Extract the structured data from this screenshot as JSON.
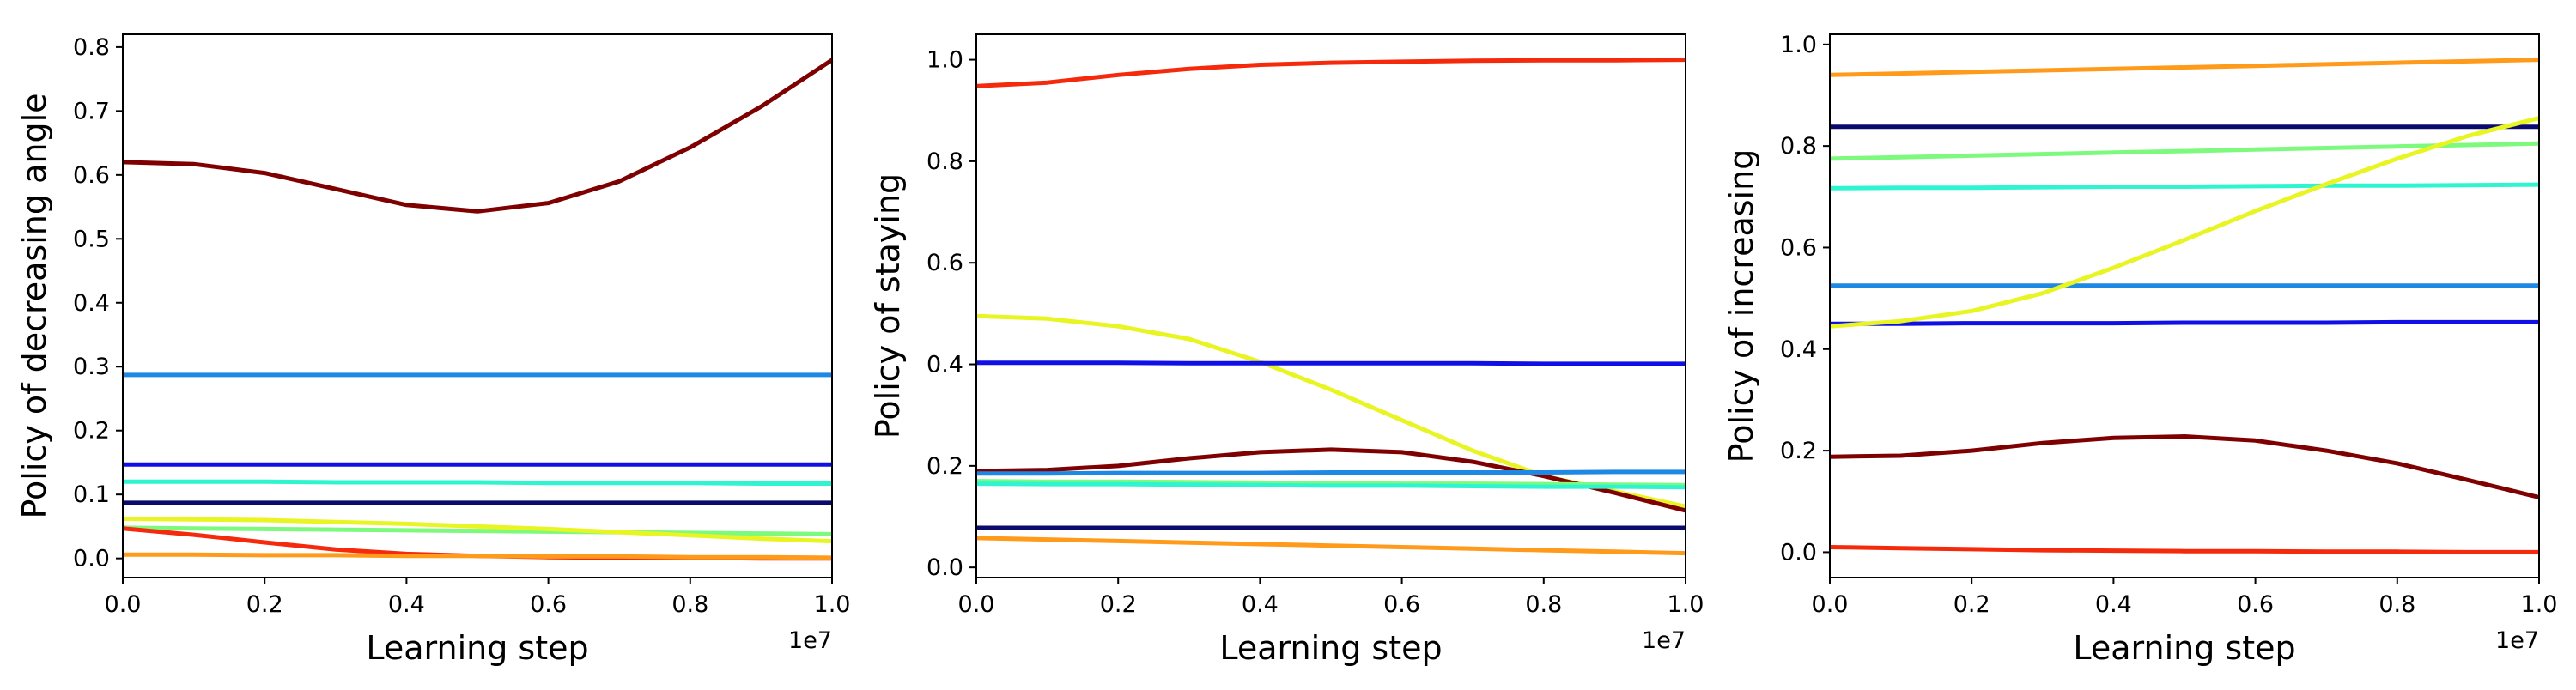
{
  "chart_data": [
    {
      "type": "line",
      "xlabel": "Learning step",
      "ylabel": "Policy of decreasing angle",
      "x_offset_label": "1e7",
      "xlim": [
        0,
        1.0
      ],
      "ylim": [
        -0.03,
        0.82
      ],
      "xticks": [
        0.0,
        0.2,
        0.4,
        0.6,
        0.8,
        1.0
      ],
      "xtick_labels": [
        "0.0",
        "0.2",
        "0.4",
        "0.6",
        "0.8",
        "1.0"
      ],
      "yticks": [
        0.0,
        0.1,
        0.2,
        0.3,
        0.4,
        0.5,
        0.6,
        0.7,
        0.8
      ],
      "ytick_labels": [
        "0.0",
        "0.1",
        "0.2",
        "0.3",
        "0.4",
        "0.5",
        "0.6",
        "0.7",
        "0.8"
      ],
      "grid": false,
      "x": [
        0.0,
        0.1,
        0.2,
        0.3,
        0.4,
        0.5,
        0.6,
        0.7,
        0.8,
        0.9,
        1.0
      ],
      "series": [
        {
          "color": "#7f0000",
          "values": [
            0.62,
            0.617,
            0.603,
            0.578,
            0.553,
            0.543,
            0.556,
            0.59,
            0.643,
            0.707,
            0.78
          ]
        },
        {
          "color": "#1e88e5",
          "values": [
            0.287,
            0.287,
            0.287,
            0.287,
            0.287,
            0.287,
            0.287,
            0.287,
            0.287,
            0.287,
            0.287
          ]
        },
        {
          "color": "#1010e6",
          "values": [
            0.147,
            0.147,
            0.147,
            0.147,
            0.147,
            0.147,
            0.147,
            0.147,
            0.147,
            0.147,
            0.147
          ]
        },
        {
          "color": "#2ef5d0",
          "values": [
            0.12,
            0.12,
            0.12,
            0.119,
            0.119,
            0.119,
            0.118,
            0.118,
            0.118,
            0.117,
            0.117
          ]
        },
        {
          "color": "#0b0b6e",
          "values": [
            0.087,
            0.087,
            0.087,
            0.087,
            0.087,
            0.087,
            0.087,
            0.087,
            0.087,
            0.087,
            0.087
          ]
        },
        {
          "color": "#7dfa7d",
          "values": [
            0.048,
            0.047,
            0.046,
            0.045,
            0.044,
            0.043,
            0.042,
            0.041,
            0.04,
            0.039,
            0.038
          ]
        },
        {
          "color": "#e8f523",
          "values": [
            0.062,
            0.061,
            0.06,
            0.057,
            0.054,
            0.05,
            0.046,
            0.041,
            0.036,
            0.031,
            0.027
          ]
        },
        {
          "color": "#f52a0c",
          "values": [
            0.047,
            0.037,
            0.025,
            0.014,
            0.007,
            0.004,
            0.002,
            0.001,
            0.001,
            0.0,
            0.0
          ]
        },
        {
          "color": "#ff9a1a",
          "values": [
            0.006,
            0.006,
            0.005,
            0.005,
            0.004,
            0.004,
            0.003,
            0.003,
            0.002,
            0.002,
            0.001
          ]
        }
      ]
    },
    {
      "type": "line",
      "xlabel": "Learning step",
      "ylabel": "Policy of staying",
      "x_offset_label": "1e7",
      "xlim": [
        0,
        1.0
      ],
      "ylim": [
        -0.02,
        1.05
      ],
      "xticks": [
        0.0,
        0.2,
        0.4,
        0.6,
        0.8,
        1.0
      ],
      "xtick_labels": [
        "0.0",
        "0.2",
        "0.4",
        "0.6",
        "0.8",
        "1.0"
      ],
      "yticks": [
        0.0,
        0.2,
        0.4,
        0.6,
        0.8,
        1.0
      ],
      "ytick_labels": [
        "0.0",
        "0.2",
        "0.4",
        "0.6",
        "0.8",
        "1.0"
      ],
      "grid": false,
      "x": [
        0.0,
        0.1,
        0.2,
        0.3,
        0.4,
        0.5,
        0.6,
        0.7,
        0.8,
        0.9,
        1.0
      ],
      "series": [
        {
          "color": "#f52a0c",
          "values": [
            0.948,
            0.955,
            0.97,
            0.982,
            0.99,
            0.994,
            0.996,
            0.998,
            0.999,
            0.999,
            1.0
          ]
        },
        {
          "color": "#e8f523",
          "values": [
            0.495,
            0.49,
            0.475,
            0.45,
            0.405,
            0.35,
            0.29,
            0.23,
            0.18,
            0.15,
            0.12
          ]
        },
        {
          "color": "#1010e6",
          "values": [
            0.403,
            0.403,
            0.403,
            0.402,
            0.402,
            0.402,
            0.402,
            0.402,
            0.401,
            0.401,
            0.401
          ]
        },
        {
          "color": "#7f0000",
          "values": [
            0.19,
            0.192,
            0.2,
            0.215,
            0.227,
            0.232,
            0.227,
            0.208,
            0.18,
            0.147,
            0.112
          ]
        },
        {
          "color": "#1e88e5",
          "values": [
            0.185,
            0.185,
            0.186,
            0.186,
            0.186,
            0.187,
            0.187,
            0.187,
            0.187,
            0.188,
            0.188
          ]
        },
        {
          "color": "#7dfa7d",
          "values": [
            0.17,
            0.169,
            0.169,
            0.168,
            0.167,
            0.166,
            0.165,
            0.165,
            0.164,
            0.163,
            0.162
          ]
        },
        {
          "color": "#2ef5d0",
          "values": [
            0.165,
            0.164,
            0.164,
            0.163,
            0.162,
            0.161,
            0.161,
            0.16,
            0.159,
            0.159,
            0.158
          ]
        },
        {
          "color": "#0b0b6e",
          "values": [
            0.078,
            0.078,
            0.078,
            0.078,
            0.078,
            0.078,
            0.078,
            0.078,
            0.078,
            0.078,
            0.078
          ]
        },
        {
          "color": "#ff9a1a",
          "values": [
            0.058,
            0.055,
            0.052,
            0.049,
            0.046,
            0.043,
            0.04,
            0.037,
            0.034,
            0.031,
            0.028
          ]
        }
      ]
    },
    {
      "type": "line",
      "xlabel": "Learning step",
      "ylabel": "Policy of increasing",
      "x_offset_label": "1e7",
      "xlim": [
        0,
        1.0
      ],
      "ylim": [
        -0.05,
        1.02
      ],
      "xticks": [
        0.0,
        0.2,
        0.4,
        0.6,
        0.8,
        1.0
      ],
      "xtick_labels": [
        "0.0",
        "0.2",
        "0.4",
        "0.6",
        "0.8",
        "1.0"
      ],
      "yticks": [
        0.0,
        0.2,
        0.4,
        0.6,
        0.8,
        1.0
      ],
      "ytick_labels": [
        "0.0",
        "0.2",
        "0.4",
        "0.6",
        "0.8",
        "1.0"
      ],
      "grid": false,
      "x": [
        0.0,
        0.1,
        0.2,
        0.3,
        0.4,
        0.5,
        0.6,
        0.7,
        0.8,
        0.9,
        1.0
      ],
      "series": [
        {
          "color": "#ff9a1a",
          "values": [
            0.94,
            0.943,
            0.946,
            0.949,
            0.952,
            0.955,
            0.958,
            0.961,
            0.964,
            0.967,
            0.97
          ]
        },
        {
          "color": "#0b0b6e",
          "values": [
            0.838,
            0.838,
            0.838,
            0.838,
            0.838,
            0.838,
            0.838,
            0.838,
            0.838,
            0.838,
            0.838
          ]
        },
        {
          "color": "#7dfa7d",
          "values": [
            0.775,
            0.778,
            0.781,
            0.784,
            0.787,
            0.79,
            0.793,
            0.796,
            0.799,
            0.802,
            0.805
          ]
        },
        {
          "color": "#2ef5d0",
          "values": [
            0.717,
            0.718,
            0.718,
            0.719,
            0.72,
            0.72,
            0.721,
            0.722,
            0.722,
            0.723,
            0.724
          ]
        },
        {
          "color": "#1e88e5",
          "values": [
            0.525,
            0.525,
            0.525,
            0.525,
            0.525,
            0.525,
            0.525,
            0.525,
            0.525,
            0.525,
            0.525
          ]
        },
        {
          "color": "#1010e6",
          "values": [
            0.45,
            0.45,
            0.451,
            0.451,
            0.451,
            0.452,
            0.452,
            0.452,
            0.453,
            0.453,
            0.453
          ]
        },
        {
          "color": "#e8f523",
          "values": [
            0.445,
            0.455,
            0.475,
            0.51,
            0.56,
            0.615,
            0.672,
            0.725,
            0.775,
            0.82,
            0.855
          ]
        },
        {
          "color": "#7f0000",
          "values": [
            0.188,
            0.19,
            0.2,
            0.215,
            0.225,
            0.228,
            0.22,
            0.2,
            0.175,
            0.142,
            0.108
          ]
        },
        {
          "color": "#f52a0c",
          "values": [
            0.01,
            0.008,
            0.006,
            0.004,
            0.003,
            0.002,
            0.002,
            0.001,
            0.001,
            0.0,
            0.0
          ]
        }
      ]
    }
  ]
}
